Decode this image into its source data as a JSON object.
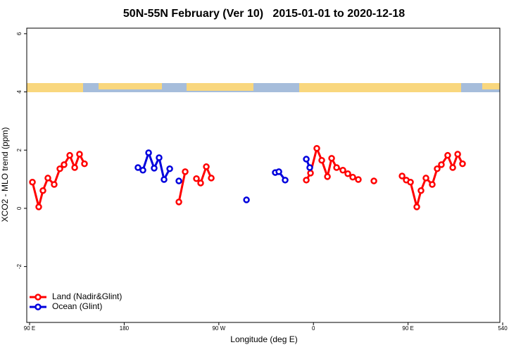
{
  "chart_data": {
    "type": "line",
    "title": "50N-55N February (Ver 10)   2015-01-01 to 2020-12-18",
    "x_label": "Longitude (deg E)",
    "y_label": "XCO2 - MLO trend (ppm)",
    "xlim": [
      87.3,
      537.3
    ],
    "ylim": [
      -3.92,
      6.19
    ],
    "xticks": [
      {
        "value": 90,
        "label": "90 E"
      },
      180,
      {
        "value": 270,
        "label": "90 W"
      },
      {
        "value": 360,
        "label": "0"
      },
      {
        "value": 450,
        "label": "90 E"
      },
      540
    ],
    "yticks": [
      -2,
      0,
      2,
      4,
      6
    ],
    "legend": "bottom-left",
    "series": [
      {
        "name": "Land (Nadir&Glint)",
        "color": "#ff0000",
        "x": [
          92.7,
          98.7,
          102.7,
          107.4,
          113.4,
          118.8,
          122.8,
          128.2,
          132.9,
          137.5,
          142.2,
          null,
          232.0,
          238.0,
          null,
          248.7,
          252.7,
          258.1,
          262.8,
          null,
          353.2,
          357.2,
          363.2,
          367.9,
          373.3,
          377.3,
          382.0,
          388.0,
          392.7,
          397.4,
          402.7,
          null,
          417.5,
          null,
          444.3,
          448.3,
          452.3,
          458.3,
          462.3,
          467.0,
          473.0,
          477.7,
          481.7,
          487.7,
          492.5,
          497.2,
          501.8
        ],
        "values": [
          0.9,
          0.05,
          0.61,
          1.04,
          0.82,
          1.36,
          1.5,
          1.82,
          1.4,
          1.86,
          1.53,
          null,
          0.22,
          1.26,
          null,
          1.02,
          0.87,
          1.43,
          1.04,
          null,
          0.97,
          1.21,
          2.06,
          1.65,
          1.09,
          1.72,
          1.4,
          1.31,
          1.19,
          1.07,
          0.99,
          null,
          0.94,
          null,
          1.11,
          0.97,
          0.9,
          0.05,
          0.61,
          1.04,
          0.82,
          1.36,
          1.5,
          1.82,
          1.4,
          1.86,
          1.53
        ]
      },
      {
        "name": "Ocean (Glint)",
        "color": "#0000dd",
        "x": [
          193.1,
          197.8,
          203.2,
          208.5,
          213.2,
          217.9,
          223.3,
          null,
          232.0,
          null,
          296.3,
          null,
          323.7,
          327.1,
          333.1,
          null,
          353.2,
          356.5
        ],
        "values": [
          1.4,
          1.31,
          1.91,
          1.38,
          1.74,
          0.99,
          1.36,
          null,
          0.94,
          null,
          0.29,
          null,
          1.23,
          1.26,
          0.97,
          null,
          1.69,
          1.4
        ]
      }
    ]
  }
}
